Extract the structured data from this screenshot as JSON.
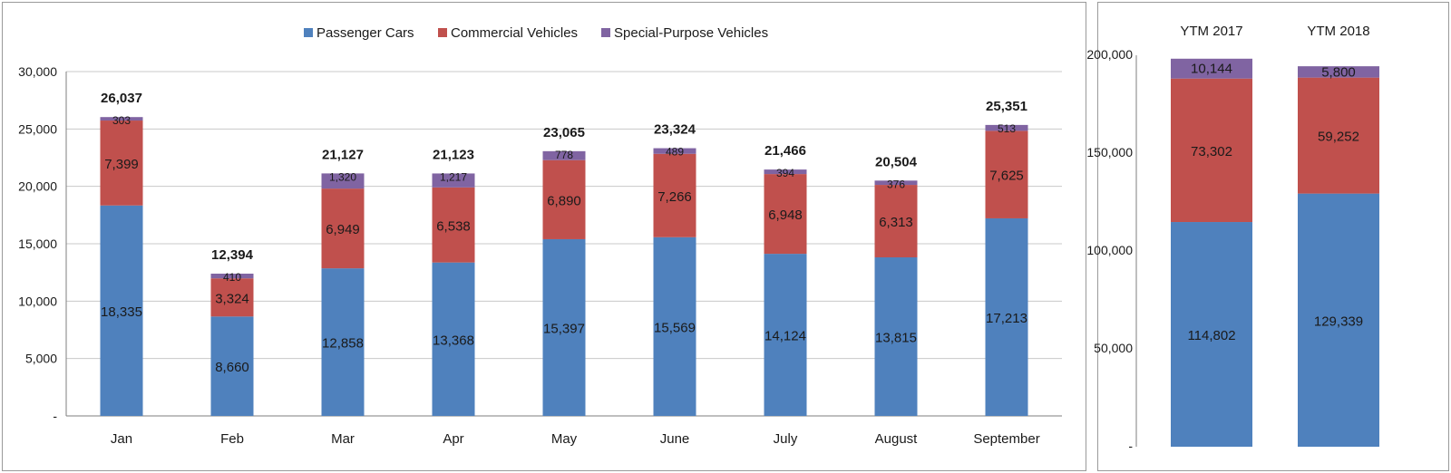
{
  "colors": {
    "passenger": "#4f81bd",
    "commercial": "#c0504d",
    "special": "#8064a2",
    "grid": "#c8c8c8",
    "axis": "#7f7f7f"
  },
  "chart_data": [
    {
      "type": "bar",
      "stacked": true,
      "categories": [
        "Jan",
        "Feb",
        "Mar",
        "Apr",
        "May",
        "June",
        "July",
        "August",
        "September"
      ],
      "series": [
        {
          "name": "Passenger Cars",
          "values": [
            18335,
            8660,
            12858,
            13368,
            15397,
            15569,
            14124,
            13815,
            17213
          ],
          "labels": [
            "18,335",
            "8,660",
            "12,858",
            "13,368",
            "15,397",
            "15,569",
            "14,124",
            "13,815",
            "17,213"
          ]
        },
        {
          "name": "Commercial Vehicles",
          "values": [
            7399,
            3324,
            6949,
            6538,
            6890,
            7266,
            6948,
            6313,
            7625
          ],
          "labels": [
            "7,399",
            "3,324",
            "6,949",
            "6,538",
            "6,890",
            "7,266",
            "6,948",
            "6,313",
            "7,625"
          ]
        },
        {
          "name": "Special-Purpose Vehicles",
          "values": [
            303,
            410,
            1320,
            1217,
            778,
            489,
            394,
            376,
            513
          ],
          "labels": [
            "303",
            "410",
            "1,320",
            "1,217",
            "778",
            "489",
            "394",
            "376",
            "513"
          ]
        }
      ],
      "totals": [
        "26,037",
        "12,394",
        "21,127",
        "21,123",
        "23,065",
        "23,324",
        "21,466",
        "20,504",
        "25,351"
      ],
      "yticks": [
        "-",
        "5,000",
        "10,000",
        "15,000",
        "20,000",
        "25,000",
        "30,000"
      ],
      "ylim": [
        0,
        30000
      ],
      "grid": true,
      "legend": "top-center"
    },
    {
      "type": "bar",
      "stacked": true,
      "categories": [
        "YTM 2017",
        "YTM 2018"
      ],
      "series": [
        {
          "name": "Passenger Cars",
          "values": [
            114802,
            129339
          ],
          "labels": [
            "114,802",
            "129,339"
          ]
        },
        {
          "name": "Commercial Vehicles",
          "values": [
            73302,
            59252
          ],
          "labels": [
            "73,302",
            "59,252"
          ]
        },
        {
          "name": "Special-Purpose Vehicles",
          "values": [
            10144,
            5800
          ],
          "labels": [
            "10,144",
            "5,800"
          ]
        }
      ],
      "yticks": [
        "-",
        "50,000",
        "100,000",
        "150,000",
        "200,000"
      ],
      "ylim": [
        0,
        200000
      ],
      "grid": false,
      "category_axis": "top"
    }
  ]
}
